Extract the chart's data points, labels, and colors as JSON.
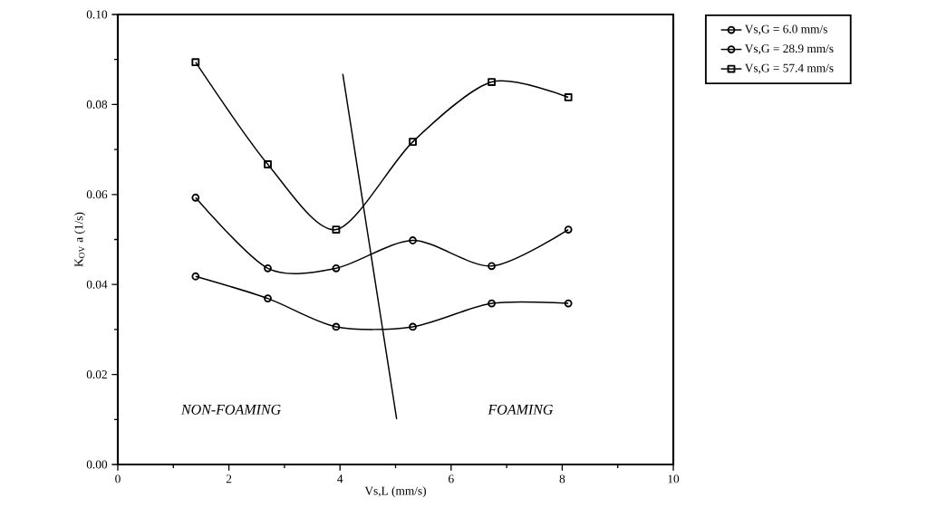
{
  "chart_data": {
    "type": "line",
    "xlabel": "Vs,L  (mm/s)",
    "ylabel": "K$_{OV}$ a  (1/s)",
    "x": [
      1.4,
      2.7,
      3.93,
      5.31,
      6.73,
      8.11
    ],
    "series": [
      {
        "name": "Vs,G = 6.0    mm/s",
        "color": "#000000",
        "marker": "circle",
        "values": [
          0.0418,
          0.0369,
          0.0306,
          0.0306,
          0.0358,
          0.0358
        ]
      },
      {
        "name": "Vs,G = 28.9  mm/s",
        "color": "#000000",
        "marker": "circle",
        "values": [
          0.0593,
          0.0436,
          0.0436,
          0.0498,
          0.0441,
          0.0522
        ]
      },
      {
        "name": "Vs,G = 57.4  mm/s",
        "color": "#000000",
        "marker": "square",
        "values": [
          0.0894,
          0.0667,
          0.0522,
          0.0717,
          0.085,
          0.0816
        ]
      },
      {
        "type": "line",
        "color": "#000000",
        "marker": "none",
        "x": [
          4.05,
          5.02
        ],
        "values": [
          0.0868,
          0.0101
        ]
      }
    ],
    "xlim": [
      0,
      10
    ],
    "ylim": [
      0,
      0.1
    ],
    "xticks": [
      0,
      {
        "value": 1,
        "label": null
      },
      2,
      {
        "value": 3,
        "label": null
      },
      4,
      {
        "value": 5,
        "label": null
      },
      6,
      {
        "value": 7,
        "label": null
      },
      8,
      {
        "value": 9,
        "label": null
      },
      10
    ],
    "yticks": [
      {
        "value": 0,
        "label": "0.00"
      },
      {
        "value": 0.01,
        "label": null
      },
      {
        "value": 0.02,
        "label": "0.02"
      },
      {
        "value": 0.03,
        "label": null
      },
      {
        "value": 0.04,
        "label": "0.04"
      },
      {
        "value": 0.05,
        "label": null
      },
      {
        "value": 0.06,
        "label": "0.06"
      },
      {
        "value": 0.07,
        "label": null
      },
      {
        "value": 0.08,
        "label": "0.08"
      },
      {
        "value": 0.09,
        "label": null
      },
      {
        "value": 0.1,
        "label": "0.10"
      }
    ],
    "annotations": [
      "*NON-FOAMING*",
      "*FOAMING*"
    ],
    "grid": false,
    "legend": "right"
  }
}
